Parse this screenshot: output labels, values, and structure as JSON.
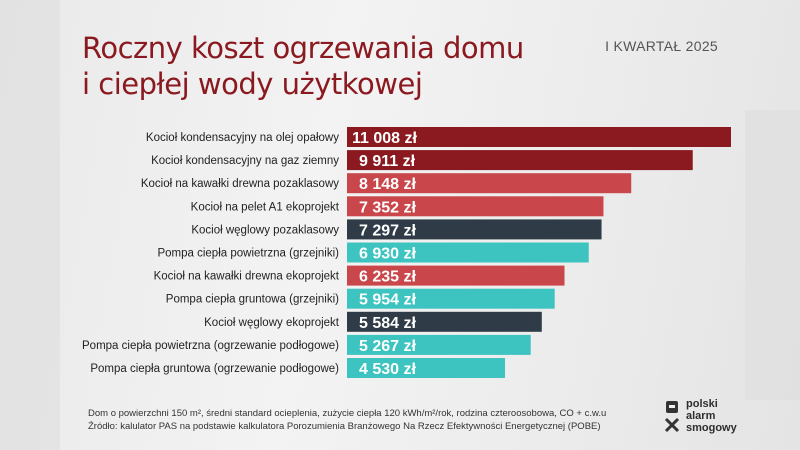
{
  "title_line1": "Roczny koszt ogrzewania domu",
  "title_line2": "i ciepłej wody użytkowej",
  "period": "I KWARTAŁ 2025",
  "colors": {
    "dark_red": "#8b1a20",
    "red": "#c9474a",
    "dark": "#2f3b46",
    "teal": "#3dc4c0"
  },
  "chart_data": {
    "type": "bar",
    "orientation": "horizontal",
    "unit": "zł",
    "categories": [
      "Kocioł kondensacyjny na olej opałowy",
      "Kocioł kondensacyjny na gaz ziemny",
      "Kocioł na kawałki drewna pozaklasowy",
      "Kocioł na pelet A1 ekoprojekt",
      "Kocioł węglowy pozaklasowy",
      "Pompa ciepła powietrzna (grzejniki)",
      "Kocioł na kawałki drewna ekoprojekt",
      "Pompa ciepła gruntowa (grzejniki)",
      "Kocioł węglowy ekoprojekt",
      "Pompa ciepła powietrzna (ogrzewanie podłogowe)",
      "Pompa ciepła gruntowa (ogrzewanie podłogowe)"
    ],
    "values": [
      11008,
      9911,
      8148,
      7352,
      7297,
      6930,
      6235,
      5954,
      5584,
      5267,
      4530
    ],
    "value_labels": [
      "11 008 zł",
      "9 911 zł",
      "8 148 zł",
      "7 352 zł",
      "7 297 zł",
      "6 930 zł",
      "6 235 zł",
      "5 954 zł",
      "5 584 zł",
      "5 267 zł",
      "4 530 zł"
    ],
    "bar_colors": [
      "dark_red",
      "dark_red",
      "red",
      "red",
      "dark",
      "teal",
      "red",
      "teal",
      "dark",
      "teal",
      "teal"
    ],
    "xlim": [
      0,
      11008
    ]
  },
  "footnote_line1": "Dom o powierzchni 150 m², średni standard ocieplenia, zużycie ciepła 120 kWh/m²/rok, rodzina czteroosobowa, CO + c.w.u",
  "footnote_line2": "Źródło: kalulator PAS na podstawie kalkulatora Porozumienia Branżowego Na Rzecz Efektywności Energetycznej (POBE)",
  "logo": {
    "line1": "polski",
    "line2": "alarm",
    "line3": "smogowy"
  }
}
